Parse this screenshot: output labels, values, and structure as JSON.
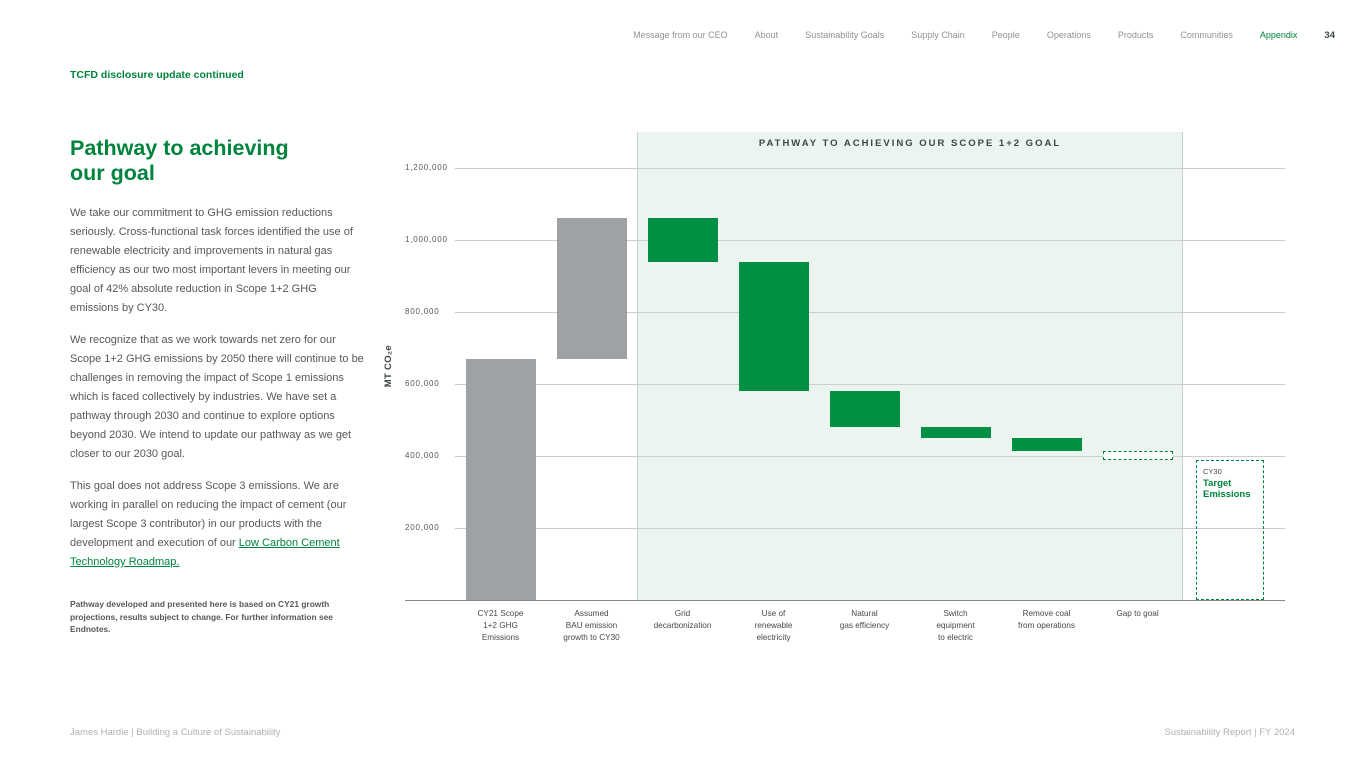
{
  "nav": {
    "items": [
      "Message from our CEO",
      "About",
      "Sustainability Goals",
      "Supply Chain",
      "People",
      "Operations",
      "Products",
      "Communities",
      "Appendix"
    ],
    "active": "Appendix",
    "page_number": "34"
  },
  "eyebrow": "TCFD disclosure update continued",
  "article": {
    "title": "Pathway to achieving\nour goal",
    "paragraphs": [
      "We take our commitment to GHG emission reductions seriously. Cross-functional task forces identified the use of renewable electricity and improvements in natural gas efficiency as our two most important levers in meeting our goal of 42% absolute reduction in Scope 1+2 GHG emissions by CY30.",
      "We recognize that as we work towards net zero for our Scope 1+2 GHG emissions by 2050 there will continue to be challenges in removing the impact of Scope 1 emissions which is faced collectively by industries. We have set a pathway through 2030 and continue to explore options beyond 2030. We intend to update our pathway as we get closer to our 2030 goal.",
      "This goal does not address Scope 3 emissions. We are working in parallel on reducing the impact of cement (our largest Scope 3 contributor) in our products with the development and execution of our "
    ],
    "link_text": "Low Carbon Cement Technology Roadmap.",
    "footnote": "Pathway developed and presented here is based on CY21 growth projections, results subject to change. For further information see Endnotes."
  },
  "chart_data": {
    "type": "bar",
    "subtype": "waterfall",
    "title": "PATHWAY TO ACHIEVING OUR SCOPE 1+2 GOAL",
    "ylabel": "MT CO₂e",
    "ylim": [
      0,
      1250000
    ],
    "yticks": [
      200000,
      400000,
      600000,
      800000,
      1000000,
      1200000
    ],
    "grid": true,
    "bars": [
      {
        "label": "CY21 Scope\n1+2 GHG\nEmissions",
        "start": 0,
        "end": 670000,
        "style": "gray"
      },
      {
        "label": "Assumed\nBAU emission\ngrowth to CY30",
        "start": 670000,
        "end": 1060000,
        "style": "gray"
      },
      {
        "label": "Grid\ndecarbonization",
        "start": 1060000,
        "end": 940000,
        "style": "green"
      },
      {
        "label": "Use of\nrenewable\nelectricity",
        "start": 940000,
        "end": 580000,
        "style": "green"
      },
      {
        "label": "Natural\ngas efficiency",
        "start": 580000,
        "end": 480000,
        "style": "green"
      },
      {
        "label": "Switch\nequipment\nto electric",
        "start": 480000,
        "end": 450000,
        "style": "green"
      },
      {
        "label": "Remove coal\nfrom operations",
        "start": 450000,
        "end": 415000,
        "style": "green"
      },
      {
        "label": "Gap to goal",
        "start": 415000,
        "end": 390000,
        "style": "dashed"
      }
    ],
    "highlight_region": {
      "from_bar": 2,
      "to_bar": 7
    },
    "target": {
      "year": "CY30",
      "label": "Target\nEmissions",
      "value": 390000
    }
  },
  "footer": {
    "left": "James Hardie | Building a Culture of Sustainability",
    "right": "Sustainability Report | FY 2024"
  },
  "colors": {
    "accent_green": "#00843D",
    "bar_green": "#008F43",
    "bar_gray": "#9EA2A5",
    "region_green": "#EBF4EE",
    "grid_line": "#CACED0",
    "axis_line": "#84888B",
    "text_dark": "#3F4447",
    "text_body": "#55595C",
    "text_muted": "#AEB1B3"
  }
}
